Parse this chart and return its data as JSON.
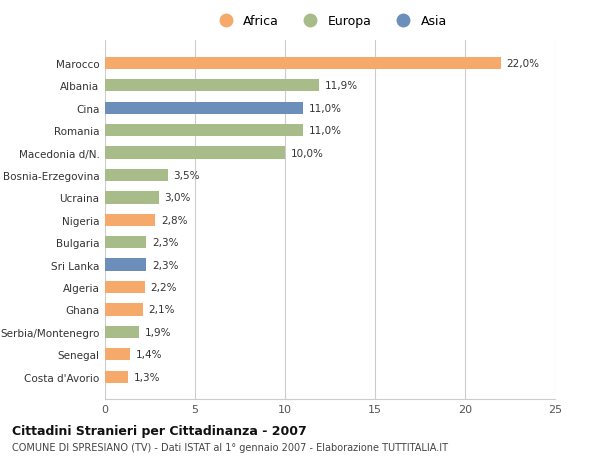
{
  "countries": [
    "Marocco",
    "Albania",
    "Cina",
    "Romania",
    "Macedonia d/N.",
    "Bosnia-Erzegovina",
    "Ucraina",
    "Nigeria",
    "Bulgaria",
    "Sri Lanka",
    "Algeria",
    "Ghana",
    "Serbia/Montenegro",
    "Senegal",
    "Costa d'Avorio"
  ],
  "values": [
    22.0,
    11.9,
    11.0,
    11.0,
    10.0,
    3.5,
    3.0,
    2.8,
    2.3,
    2.3,
    2.2,
    2.1,
    1.9,
    1.4,
    1.3
  ],
  "labels": [
    "22,0%",
    "11,9%",
    "11,0%",
    "11,0%",
    "10,0%",
    "3,5%",
    "3,0%",
    "2,8%",
    "2,3%",
    "2,3%",
    "2,2%",
    "2,1%",
    "1,9%",
    "1,4%",
    "1,3%"
  ],
  "continents": [
    "Africa",
    "Europa",
    "Asia",
    "Europa",
    "Europa",
    "Europa",
    "Europa",
    "Africa",
    "Europa",
    "Asia",
    "Africa",
    "Africa",
    "Europa",
    "Africa",
    "Africa"
  ],
  "colors": {
    "Africa": "#F5A96B",
    "Europa": "#A8BC8A",
    "Asia": "#6B8EBB"
  },
  "xlim": [
    0,
    25
  ],
  "xticks": [
    0,
    5,
    10,
    15,
    20,
    25
  ],
  "title": "Cittadini Stranieri per Cittadinanza - 2007",
  "subtitle": "COMUNE DI SPRESIANO (TV) - Dati ISTAT al 1° gennaio 2007 - Elaborazione TUTTITALIA.IT",
  "background_color": "#ffffff",
  "bar_height": 0.55,
  "grid_color": "#cccccc"
}
